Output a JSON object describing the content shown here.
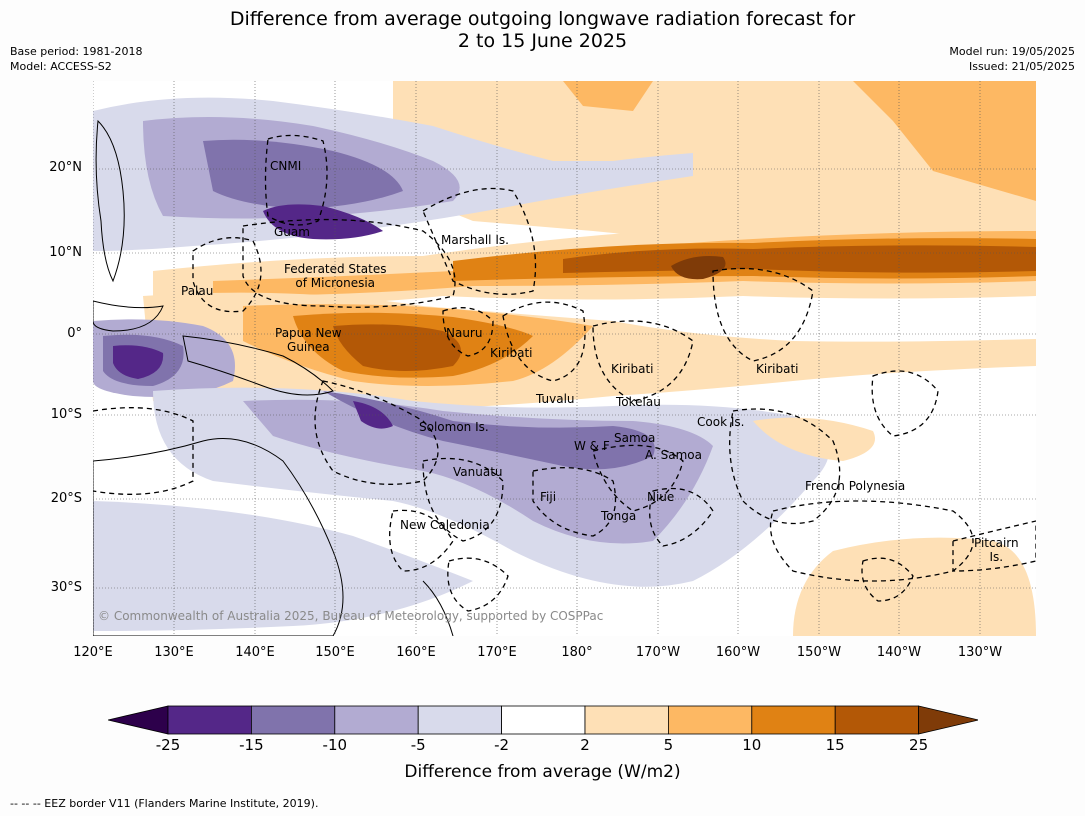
{
  "title_line1": "Difference from average outgoing longwave radiation forecast for",
  "title_line2": "2 to 15 June 2025",
  "base_period": "Base period: 1981-2018",
  "model": "Model: ACCESS-S2",
  "model_run": "Model run: 19/05/2025",
  "issued": "Issued: 21/05/2025",
  "latitude_labels": [
    "20°N",
    "10°N",
    "0°",
    "10°S",
    "20°S",
    "30°S"
  ],
  "longitude_labels": [
    "120°E",
    "130°E",
    "140°E",
    "150°E",
    "160°E",
    "170°E",
    "180°",
    "170°W",
    "160°W",
    "150°W",
    "140°W",
    "130°W"
  ],
  "copyright": "© Commonwealth of Australia 2025, Bureau of Meteorology, supported by COSPPac",
  "colorbar": {
    "title": "Difference from average (W/m2)",
    "ticks": [
      "-25",
      "-15",
      "-10",
      "-5",
      "-2",
      "2",
      "5",
      "10",
      "15",
      "25"
    ],
    "colors": [
      "#2d004b",
      "#542788",
      "#8073ac",
      "#b2abd2",
      "#d8daeb",
      "#ffffff",
      "#fee0b6",
      "#fdb863",
      "#e08214",
      "#b35806",
      "#7f3b08"
    ]
  },
  "footer": "--  --  -- EEZ border V11 (Flanders Marine Institute, 2019).",
  "regions": {
    "cnmi": "CNMI",
    "guam": "Guam",
    "marshall": "Marshall Is.",
    "fsm": "Federated States\nof Micronesia",
    "palau": "Palau",
    "png": "Papua New\nGuinea",
    "nauru": "Nauru",
    "kiribati_w": "Kiribati",
    "kiribati_c": "Kiribati",
    "kiribati_e": "Kiribati",
    "tuvalu": "Tuvalu",
    "tokelau": "Tokelau",
    "cook": "Cook Is.",
    "solomon": "Solomon Is.",
    "samoa": "Samoa",
    "wf": "W & F",
    "asamoa": "A. Samoa",
    "vanuatu": "Vanuatu",
    "fiji": "Fiji",
    "niue": "Niue",
    "tonga": "Tonga",
    "fp": "French Polynesia",
    "newcal": "New Caledonia",
    "pitcairn": "Pitcairn\nIs."
  }
}
